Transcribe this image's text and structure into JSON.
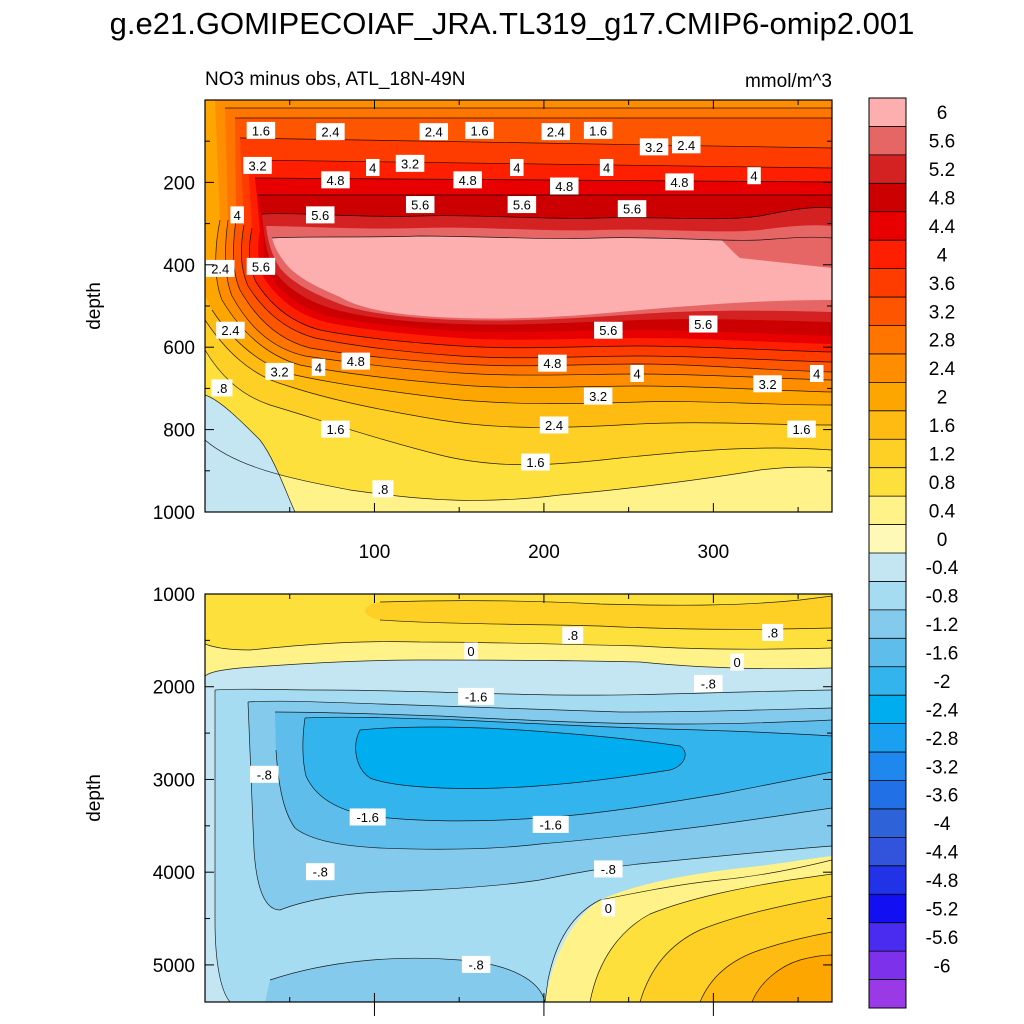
{
  "figure": {
    "title": "g.e21.GOMIPECOIAF_JRA.TL319_g17.CMIP6-omip2.001"
  },
  "chart_data": [
    {
      "type": "contour",
      "name": "upper-depth-section",
      "title": "NO3 minus obs, ATL_18N-49N",
      "units": "mmol/m^3",
      "xlabel": "",
      "ylabel": "depth",
      "xlim": [
        0,
        370
      ],
      "ylim": [
        1000,
        0
      ],
      "xticks": [
        "100",
        "200",
        "300"
      ],
      "yticks": [
        "200",
        "400",
        "600",
        "800",
        "1000"
      ],
      "contour_labels": [
        {
          "text": "1.6",
          "x": 33,
          "y": 75
        },
        {
          "text": "2.4",
          "x": 74,
          "y": 78
        },
        {
          "text": "2.4",
          "x": 135,
          "y": 78
        },
        {
          "text": "1.6",
          "x": 162,
          "y": 75
        },
        {
          "text": "2.4",
          "x": 207,
          "y": 78
        },
        {
          "text": "1.6",
          "x": 232,
          "y": 75
        },
        {
          "text": "3.2",
          "x": 265,
          "y": 115
        },
        {
          "text": "2.4",
          "x": 284,
          "y": 110
        },
        {
          "text": "3.2",
          "x": 31,
          "y": 160
        },
        {
          "text": "4.8",
          "x": 77,
          "y": 195
        },
        {
          "text": "4",
          "x": 99,
          "y": 165
        },
        {
          "text": "3.2",
          "x": 121,
          "y": 155
        },
        {
          "text": "4.8",
          "x": 155,
          "y": 195
        },
        {
          "text": "4",
          "x": 184,
          "y": 165
        },
        {
          "text": "4.8",
          "x": 212,
          "y": 210
        },
        {
          "text": "4",
          "x": 237,
          "y": 165
        },
        {
          "text": "4.8",
          "x": 280,
          "y": 200
        },
        {
          "text": "4",
          "x": 324,
          "y": 185
        },
        {
          "text": "4",
          "x": 19,
          "y": 280
        },
        {
          "text": "5.6",
          "x": 68,
          "y": 280
        },
        {
          "text": "5.6",
          "x": 127,
          "y": 255
        },
        {
          "text": "5.6",
          "x": 187,
          "y": 255
        },
        {
          "text": "5.6",
          "x": 252,
          "y": 265
        },
        {
          "text": "2.4",
          "x": 9,
          "y": 410
        },
        {
          "text": "5.6",
          "x": 33,
          "y": 405
        },
        {
          "text": "2.4",
          "x": 15,
          "y": 560
        },
        {
          "text": "3.2",
          "x": 44,
          "y": 660
        },
        {
          "text": "4",
          "x": 67,
          "y": 650
        },
        {
          "text": "4.8",
          "x": 89,
          "y": 635
        },
        {
          "text": "5.6",
          "x": 238,
          "y": 560
        },
        {
          "text": "5.6",
          "x": 294,
          "y": 545
        },
        {
          "text": "4.8",
          "x": 205,
          "y": 640
        },
        {
          "text": "4",
          "x": 255,
          "y": 665
        },
        {
          "text": "3.2",
          "x": 232,
          "y": 720
        },
        {
          "text": "3.2",
          "x": 332,
          "y": 690
        },
        {
          "text": "4",
          "x": 361,
          "y": 665
        },
        {
          "text": ".8",
          "x": 10,
          "y": 700
        },
        {
          "text": "1.6",
          "x": 77,
          "y": 800
        },
        {
          "text": "2.4",
          "x": 206,
          "y": 790
        },
        {
          "text": "1.6",
          "x": 195,
          "y": 880
        },
        {
          "text": "1.6",
          "x": 352,
          "y": 800
        },
        {
          "text": ".8",
          "x": 105,
          "y": 945
        }
      ]
    },
    {
      "type": "contour",
      "name": "lower-depth-section",
      "title": "",
      "units": "",
      "xlabel": "",
      "ylabel": "depth",
      "xlim": [
        0,
        370
      ],
      "ylim": [
        5400,
        1000
      ],
      "xticks": [],
      "yticks": [
        "1000",
        "2000",
        "3000",
        "4000",
        "5000"
      ],
      "contour_labels": [
        {
          "text": ".8",
          "x": 217,
          "y": 1450
        },
        {
          "text": ".8",
          "x": 335,
          "y": 1420
        },
        {
          "text": "0",
          "x": 157,
          "y": 1620
        },
        {
          "text": "0",
          "x": 314,
          "y": 1740
        },
        {
          "text": "-.8",
          "x": 297,
          "y": 1970
        },
        {
          "text": "-1.6",
          "x": 160,
          "y": 2110
        },
        {
          "text": "-.8",
          "x": 35,
          "y": 2950
        },
        {
          "text": "-1.6",
          "x": 96,
          "y": 3410
        },
        {
          "text": "-1.6",
          "x": 204,
          "y": 3490
        },
        {
          "text": "-.8",
          "x": 68,
          "y": 4000
        },
        {
          "text": "-.8",
          "x": 238,
          "y": 3970
        },
        {
          "text": "0",
          "x": 238,
          "y": 4390
        },
        {
          "text": "-.8",
          "x": 160,
          "y": 5000
        }
      ]
    }
  ],
  "colorbar": {
    "labels": [
      "6",
      "5.6",
      "5.2",
      "4.8",
      "4.4",
      "4",
      "3.6",
      "3.2",
      "2.8",
      "2.4",
      "2",
      "1.6",
      "1.2",
      "0.8",
      "0.4",
      "0",
      "-0.4",
      "-0.8",
      "-1.2",
      "-1.6",
      "-2",
      "-2.4",
      "-2.8",
      "-3.2",
      "-3.6",
      "-4",
      "-4.4",
      "-4.8",
      "-5.2",
      "-5.6",
      "-6"
    ],
    "colors": [
      "#fdafaf",
      "#e66666",
      "#d42222",
      "#cc0000",
      "#e80000",
      "#fe1f00",
      "#fe3c00",
      "#fe5500",
      "#fe7600",
      "#fe8e00",
      "#fea600",
      "#febb12",
      "#fecf25",
      "#fee03d",
      "#fff289",
      "#fff9b8",
      "#c4e6f3",
      "#a6dcf1",
      "#84caec",
      "#5fbdeb",
      "#34b4ec",
      "#00aeef",
      "#1aa0f0",
      "#1e88ee",
      "#2170e6",
      "#2d62d9",
      "#3253dc",
      "#2232e6",
      "#1210f2",
      "#4a2cf0",
      "#7d31ea",
      "#9a3ae6"
    ]
  }
}
